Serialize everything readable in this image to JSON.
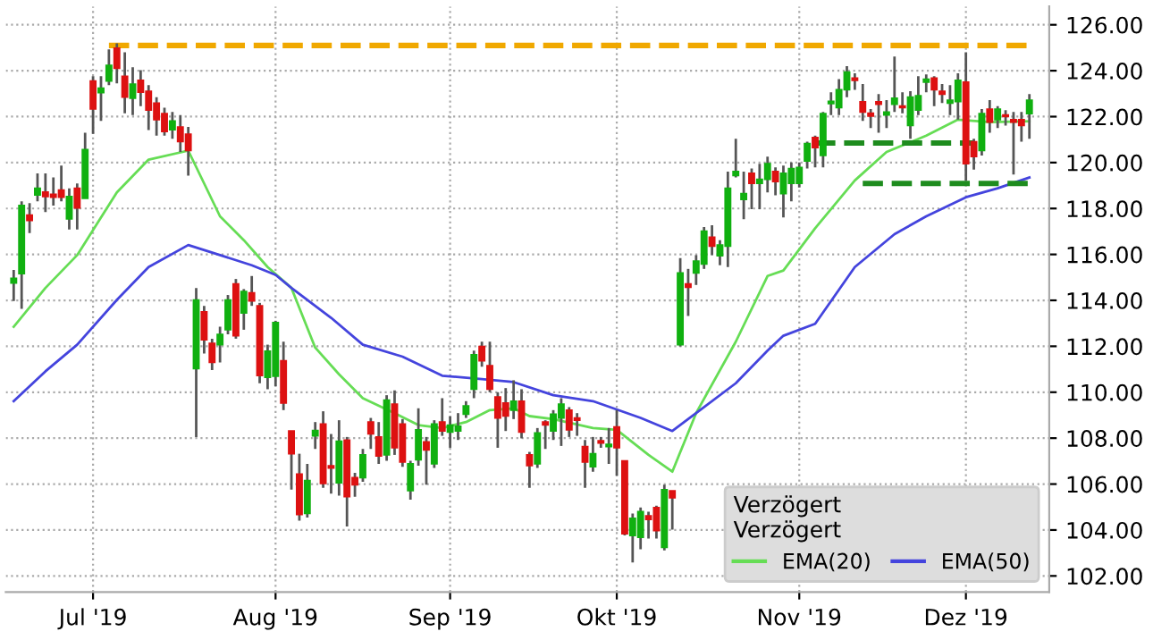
{
  "chart_data": {
    "type": "candlestick",
    "categories": [
      null,
      null,
      null,
      null,
      null,
      null,
      null,
      null,
      null,
      null,
      "Jul '19",
      null,
      null,
      null,
      null,
      null,
      null,
      null,
      null,
      null,
      null,
      null,
      null,
      null,
      null,
      null,
      null,
      null,
      null,
      null,
      null,
      null,
      null,
      "Aug '19",
      null,
      null,
      null,
      null,
      null,
      null,
      null,
      null,
      null,
      null,
      null,
      null,
      null,
      null,
      null,
      null,
      null,
      null,
      null,
      null,
      null,
      "Sep '19",
      null,
      null,
      null,
      null,
      null,
      null,
      null,
      null,
      null,
      null,
      null,
      null,
      null,
      null,
      null,
      null,
      null,
      null,
      null,
      null,
      "Okt '19",
      null,
      null,
      null,
      null,
      null,
      null,
      null,
      null,
      null,
      null,
      null,
      null,
      null,
      null,
      null,
      null,
      null,
      null,
      null,
      null,
      null,
      null,
      "Nov '19",
      null,
      null,
      null,
      null,
      null,
      null,
      null,
      null,
      null,
      null,
      null,
      null,
      null,
      null,
      null,
      null,
      null,
      null,
      null,
      null,
      "Dez '19",
      null,
      null,
      null,
      null,
      null,
      null,
      null,
      null
    ],
    "ohlc": [
      [
        114.75,
        115.32,
        113.97,
        114.96
      ],
      [
        115.16,
        118.31,
        113.63,
        118.13
      ],
      [
        117.71,
        118.23,
        116.93,
        117.48
      ],
      [
        118.59,
        119.53,
        118.31,
        118.88
      ],
      [
        118.72,
        119.53,
        117.84,
        118.52
      ],
      [
        118.62,
        119.35,
        118.13,
        118.49
      ],
      [
        118.8,
        119.87,
        118.31,
        118.49
      ],
      [
        117.55,
        118.88,
        117.09,
        118.52
      ],
      [
        118.88,
        119.09,
        117.09,
        118.02
      ],
      [
        118.44,
        121.3,
        118.44,
        120.57
      ],
      [
        123.55,
        123.76,
        121.25,
        122.33
      ],
      [
        123.04,
        123.76,
        121.81,
        123.24
      ],
      [
        123.55,
        124.93,
        123.37,
        124.23
      ],
      [
        124.98,
        125.19,
        123.45,
        124.1
      ],
      [
        123.76,
        124.8,
        122.15,
        122.85
      ],
      [
        122.8,
        124.15,
        122.07,
        123.42
      ],
      [
        123.58,
        124.02,
        122.46,
        123.06
      ],
      [
        123.11,
        123.37,
        121.42,
        122.28
      ],
      [
        122.59,
        122.85,
        121.17,
        121.87
      ],
      [
        122.13,
        122.39,
        121.17,
        121.35
      ],
      [
        121.43,
        122.2,
        121.04,
        121.81
      ],
      [
        121.55,
        122.07,
        120.46,
        120.91
      ],
      [
        121.24,
        121.55,
        119.43,
        120.52
      ],
      [
        111.03,
        114.54,
        108.05,
        114.02
      ],
      [
        113.5,
        113.76,
        111.68,
        112.28
      ],
      [
        112.13,
        112.33,
        110.96,
        111.3
      ],
      [
        112.07,
        112.85,
        111.3,
        112.52
      ],
      [
        112.72,
        114.23,
        112.52,
        114.02
      ],
      [
        114.72,
        114.93,
        112.33,
        112.46
      ],
      [
        113.45,
        114.49,
        112.72,
        114.39
      ],
      [
        114.33,
        115.06,
        113.76,
        113.97
      ],
      [
        113.76,
        113.89,
        110.39,
        110.72
      ],
      [
        110.65,
        112.07,
        110.13,
        111.79
      ],
      [
        110.7,
        113.11,
        110.26,
        113.03
      ],
      [
        111.37,
        112.2,
        109.22,
        109.53
      ],
      [
        108.31,
        108.31,
        105.76,
        107.32
      ],
      [
        106.44,
        107.32,
        104.41,
        104.67
      ],
      [
        104.72,
        106.88,
        104.54,
        106.15
      ],
      [
        108.1,
        108.7,
        107.53,
        108.33
      ],
      [
        108.62,
        109.17,
        105.84,
        106.02
      ],
      [
        106.8,
        108.18,
        105.58,
        106.7
      ],
      [
        106.05,
        108.78,
        105.5,
        107.87
      ],
      [
        107.92,
        108.05,
        104.15,
        105.45
      ],
      [
        106.28,
        106.49,
        105.45,
        105.97
      ],
      [
        106.28,
        107.53,
        106.1,
        107.27
      ],
      [
        108.7,
        108.88,
        107.53,
        108.18
      ],
      [
        108.05,
        108.7,
        106.88,
        107.22
      ],
      [
        107.27,
        109.87,
        107.01,
        109.66
      ],
      [
        109.48,
        110.08,
        107.27,
        107.58
      ],
      [
        108.62,
        108.83,
        106.75,
        106.96
      ],
      [
        105.71,
        107.01,
        105.32,
        106.88
      ],
      [
        107.06,
        109.3,
        106.8,
        108.36
      ],
      [
        107.84,
        108.05,
        105.97,
        107.48
      ],
      [
        106.88,
        108.78,
        106.7,
        108.62
      ],
      [
        108.7,
        109.74,
        108.1,
        108.31
      ],
      [
        108.26,
        108.96,
        107.58,
        108.57
      ],
      [
        108.31,
        109.09,
        107.92,
        108.52
      ],
      [
        109.04,
        109.61,
        108.88,
        109.4
      ],
      [
        110.13,
        111.81,
        109.74,
        111.63
      ],
      [
        111.99,
        112.2,
        111.11,
        111.37
      ],
      [
        111.16,
        112.2,
        110.0,
        110.13
      ],
      [
        109.79,
        110.0,
        107.58,
        108.88
      ],
      [
        109.53,
        110.18,
        108.31,
        108.96
      ],
      [
        109.22,
        110.52,
        108.83,
        109.61
      ],
      [
        109.61,
        110.13,
        107.99,
        108.26
      ],
      [
        107.27,
        107.4,
        105.84,
        106.8
      ],
      [
        106.88,
        108.44,
        106.7,
        108.23
      ],
      [
        108.7,
        108.78,
        107.53,
        108.57
      ],
      [
        108.31,
        109.22,
        107.92,
        109.04
      ],
      [
        108.88,
        109.74,
        107.66,
        109.48
      ],
      [
        109.22,
        109.35,
        108.05,
        108.36
      ],
      [
        108.88,
        109.09,
        108.1,
        108.78
      ],
      [
        107.63,
        107.92,
        105.84,
        106.96
      ],
      [
        106.75,
        108.05,
        106.54,
        107.32
      ],
      [
        107.89,
        108.05,
        107.58,
        107.79
      ],
      [
        107.63,
        108.44,
        106.88,
        107.73
      ],
      [
        108.49,
        109.22,
        106.36,
        107.58
      ],
      [
        107.01,
        107.01,
        103.76,
        103.84
      ],
      [
        103.76,
        104.72,
        102.59,
        104.51
      ],
      [
        103.68,
        104.98,
        103.16,
        104.8
      ],
      [
        104.62,
        104.8,
        103.63,
        104.46
      ],
      [
        104.98,
        105.06,
        103.63,
        103.97
      ],
      [
        103.24,
        105.97,
        103.11,
        105.76
      ],
      [
        105.71,
        105.71,
        104.02,
        105.4
      ],
      [
        112.07,
        115.84,
        111.99,
        115.19
      ],
      [
        114.72,
        115.37,
        113.32,
        114.57
      ],
      [
        115.19,
        115.97,
        114.67,
        115.71
      ],
      [
        115.58,
        117.19,
        115.37,
        117.01
      ],
      [
        116.75,
        117.27,
        115.97,
        116.36
      ],
      [
        115.94,
        116.62,
        115.53,
        116.41
      ],
      [
        116.36,
        119.61,
        115.45,
        118.88
      ],
      [
        119.43,
        121.04,
        119.35,
        119.61
      ],
      [
        118.39,
        119.61,
        117.53,
        118.65
      ],
      [
        119.53,
        119.74,
        117.97,
        119.09
      ],
      [
        119.09,
        119.95,
        117.97,
        119.27
      ],
      [
        119.27,
        120.26,
        118.7,
        119.95
      ],
      [
        119.61,
        119.79,
        118.57,
        119.17
      ],
      [
        118.65,
        119.87,
        117.61,
        119.53
      ],
      [
        119.09,
        120.0,
        118.31,
        119.74
      ],
      [
        119.09,
        120.0,
        118.91,
        119.79
      ],
      [
        120.07,
        120.91,
        119.74,
        120.83
      ],
      [
        121.09,
        121.17,
        119.79,
        120.65
      ],
      [
        120.31,
        122.2,
        119.79,
        122.13
      ],
      [
        122.57,
        123.06,
        122.07,
        122.67
      ],
      [
        122.39,
        123.63,
        122.07,
        123.17
      ],
      [
        123.17,
        124.2,
        122.85,
        123.94
      ],
      [
        123.68,
        123.89,
        123.17,
        123.58
      ],
      [
        122.65,
        123.42,
        121.81,
        122.2
      ],
      [
        122.15,
        122.33,
        121.5,
        122.02
      ],
      [
        122.65,
        122.98,
        121.3,
        122.54
      ],
      [
        122.07,
        122.72,
        121.5,
        122.2
      ],
      [
        122.54,
        124.62,
        122.2,
        122.8
      ],
      [
        122.46,
        123.06,
        122.15,
        122.39
      ],
      [
        121.61,
        123.11,
        121.04,
        122.85
      ],
      [
        122.28,
        123.76,
        122.07,
        122.91
      ],
      [
        123.5,
        123.84,
        123.06,
        123.63
      ],
      [
        123.68,
        123.76,
        122.46,
        123.17
      ],
      [
        123.11,
        123.42,
        122.59,
        122.98
      ],
      [
        122.59,
        123.37,
        122.07,
        122.72
      ],
      [
        122.65,
        123.89,
        121.87,
        123.58
      ],
      [
        123.5,
        124.8,
        119.22,
        119.95
      ],
      [
        120.91,
        121.04,
        119.69,
        120.26
      ],
      [
        120.52,
        122.33,
        120.31,
        122.13
      ],
      [
        122.33,
        122.72,
        121.3,
        121.76
      ],
      [
        121.87,
        122.46,
        121.5,
        122.33
      ],
      [
        122.07,
        122.28,
        121.61,
        122.0
      ],
      [
        121.87,
        122.2,
        119.48,
        121.76
      ],
      [
        121.87,
        122.2,
        120.91,
        121.61
      ],
      [
        122.13,
        122.98,
        121.04,
        122.72
      ]
    ],
    "series": [
      {
        "name": "EMA(20)",
        "type": "line",
        "color": "#66dd55",
        "values": [
          112.85,
          null,
          null,
          null,
          114.54,
          null,
          null,
          null,
          115.97,
          null,
          null,
          null,
          null,
          118.7,
          null,
          null,
          null,
          120.13,
          null,
          null,
          null,
          null,
          120.52,
          null,
          null,
          null,
          117.66,
          null,
          null,
          116.62,
          null,
          null,
          115.45,
          null,
          null,
          114.54,
          null,
          null,
          111.94,
          null,
          null,
          110.78,
          null,
          null,
          109.74,
          null,
          null,
          null,
          109.09,
          null,
          null,
          108.57,
          null,
          null,
          108.44,
          null,
          null,
          108.7,
          null,
          null,
          109.22,
          null,
          null,
          109.3,
          null,
          108.96,
          null,
          null,
          108.83,
          null,
          null,
          null,
          null,
          108.44,
          null,
          null,
          108.36,
          null,
          null,
          null,
          107.27,
          null,
          null,
          106.54,
          null,
          null,
          109.09,
          null,
          null,
          null,
          null,
          112.2,
          null,
          null,
          null,
          115.06,
          null,
          115.3,
          null,
          null,
          null,
          117.14,
          null,
          null,
          null,
          null,
          119.22,
          null,
          null,
          null,
          120.46,
          null,
          null,
          null,
          null,
          121.17,
          null,
          null,
          null,
          121.87,
          null,
          null,
          null,
          121.76,
          null,
          null,
          null,
          null,
          121.8
        ]
      },
      {
        "name": "EMA(50)",
        "type": "line",
        "color": "#4444dd",
        "values": [
          109.61,
          null,
          null,
          null,
          110.91,
          null,
          null,
          null,
          112.07,
          null,
          null,
          null,
          null,
          114.02,
          null,
          null,
          null,
          115.45,
          null,
          null,
          null,
          null,
          116.41,
          null,
          null,
          null,
          115.97,
          null,
          null,
          null,
          115.53,
          null,
          null,
          115.11,
          null,
          114.54,
          null,
          null,
          null,
          null,
          113.24,
          null,
          null,
          null,
          112.07,
          null,
          null,
          null,
          null,
          111.55,
          null,
          null,
          null,
          null,
          110.72,
          null,
          null,
          null,
          null,
          110.57,
          null,
          null,
          null,
          110.44,
          null,
          null,
          null,
          null,
          109.87,
          null,
          null,
          null,
          null,
          109.61,
          null,
          null,
          null,
          null,
          null,
          108.88,
          null,
          null,
          null,
          108.31,
          null,
          null,
          109.09,
          null,
          null,
          null,
          null,
          110.39,
          null,
          null,
          null,
          111.81,
          null,
          112.46,
          null,
          null,
          null,
          112.98,
          null,
          null,
          null,
          null,
          115.45,
          null,
          null,
          null,
          null,
          116.88,
          null,
          null,
          null,
          117.66,
          null,
          null,
          null,
          null,
          118.49,
          null,
          null,
          null,
          118.88,
          null,
          null,
          null,
          119.35
        ]
      },
      {
        "type": "line",
        "color": "#f0a800",
        "line_style": "dashed",
        "values": [
          null,
          null,
          null,
          null,
          null,
          null,
          null,
          null,
          null,
          null,
          null,
          null,
          125.1,
          null,
          null,
          null,
          null,
          null,
          null,
          null,
          null,
          null,
          null,
          null,
          null,
          null,
          null,
          null,
          null,
          null,
          null,
          null,
          null,
          null,
          null,
          null,
          null,
          null,
          null,
          null,
          null,
          null,
          null,
          null,
          null,
          null,
          null,
          null,
          null,
          null,
          null,
          null,
          null,
          null,
          null,
          null,
          null,
          null,
          null,
          null,
          null,
          null,
          null,
          null,
          null,
          null,
          null,
          null,
          null,
          null,
          null,
          null,
          null,
          null,
          null,
          null,
          null,
          null,
          null,
          null,
          null,
          null,
          null,
          null,
          null,
          null,
          null,
          null,
          null,
          null,
          null,
          null,
          null,
          null,
          null,
          null,
          null,
          null,
          null,
          null,
          null,
          null,
          null,
          null,
          null,
          null,
          null,
          null,
          null,
          null,
          null,
          null,
          null,
          null,
          null,
          null,
          null,
          null,
          null,
          null,
          null,
          null,
          null,
          null,
          null,
          null,
          null,
          null,
          125.1
        ]
      },
      {
        "type": "line",
        "color": "#1e8c1e",
        "line_style": "dashed",
        "values": [
          null,
          null,
          null,
          null,
          null,
          null,
          null,
          null,
          null,
          null,
          null,
          null,
          null,
          null,
          null,
          null,
          null,
          null,
          null,
          null,
          null,
          null,
          null,
          null,
          null,
          null,
          null,
          null,
          null,
          null,
          null,
          null,
          null,
          null,
          null,
          null,
          null,
          null,
          null,
          null,
          null,
          null,
          null,
          null,
          null,
          null,
          null,
          null,
          null,
          null,
          null,
          null,
          null,
          null,
          null,
          null,
          null,
          null,
          null,
          null,
          null,
          null,
          null,
          null,
          null,
          null,
          null,
          null,
          null,
          null,
          null,
          null,
          null,
          null,
          null,
          null,
          null,
          null,
          null,
          null,
          null,
          null,
          null,
          null,
          null,
          null,
          null,
          null,
          null,
          null,
          null,
          null,
          null,
          null,
          null,
          null,
          null,
          null,
          null,
          null,
          null,
          120.85,
          null,
          null,
          null,
          null,
          null,
          null,
          null,
          null,
          null,
          null,
          null,
          null,
          null,
          null,
          null,
          null,
          null,
          null,
          null,
          120.85,
          null,
          null,
          null,
          null,
          null,
          null,
          null
        ]
      },
      {
        "type": "line",
        "color": "#1e8c1e",
        "line_style": "dashed",
        "values": [
          null,
          null,
          null,
          null,
          null,
          null,
          null,
          null,
          null,
          null,
          null,
          null,
          null,
          null,
          null,
          null,
          null,
          null,
          null,
          null,
          null,
          null,
          null,
          null,
          null,
          null,
          null,
          null,
          null,
          null,
          null,
          null,
          null,
          null,
          null,
          null,
          null,
          null,
          null,
          null,
          null,
          null,
          null,
          null,
          null,
          null,
          null,
          null,
          null,
          null,
          null,
          null,
          null,
          null,
          null,
          null,
          null,
          null,
          null,
          null,
          null,
          null,
          null,
          null,
          null,
          null,
          null,
          null,
          null,
          null,
          null,
          null,
          null,
          null,
          null,
          null,
          null,
          null,
          null,
          null,
          null,
          null,
          null,
          null,
          null,
          null,
          null,
          null,
          null,
          null,
          null,
          null,
          null,
          null,
          null,
          null,
          null,
          null,
          null,
          null,
          null,
          null,
          null,
          null,
          null,
          null,
          null,
          119.09,
          null,
          null,
          null,
          null,
          null,
          null,
          null,
          null,
          null,
          null,
          null,
          null,
          null,
          null,
          null,
          null,
          null,
          null,
          null,
          null,
          119.09
        ]
      }
    ],
    "ylim": [
      101.3,
      126.8
    ],
    "yticks": [
      {
        "value": 102,
        "label": "102.00"
      },
      {
        "value": 104,
        "label": "104.00"
      },
      {
        "value": 106,
        "label": "106.00"
      },
      {
        "value": 108,
        "label": "108.00"
      },
      {
        "value": 110,
        "label": "110.00"
      },
      {
        "value": 112,
        "label": "112.00"
      },
      {
        "value": 114,
        "label": "114.00"
      },
      {
        "value": 116,
        "label": "116.00"
      },
      {
        "value": 118,
        "label": "118.00"
      },
      {
        "value": 120,
        "label": "120.00"
      },
      {
        "value": 122,
        "label": "122.00"
      },
      {
        "value": 124,
        "label": "124.00"
      },
      {
        "value": 126,
        "label": "126.00"
      }
    ],
    "grid": true,
    "legend": "bottom right",
    "legend_title": "Verzögert\nVerzögert"
  }
}
